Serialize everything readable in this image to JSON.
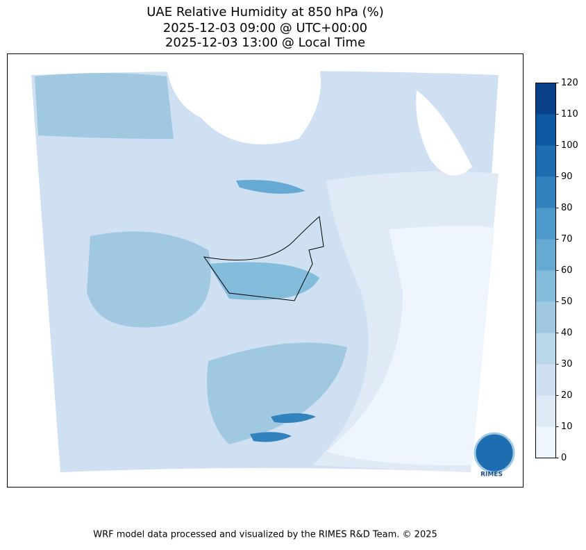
{
  "title": [
    "UAE Relative Humidity at 850 hPa (%)",
    "2025-12-03 09:00 @ UTC+00:00",
    "2025-12-03 13:00 @ Local Time"
  ],
  "colorbar": {
    "levels": [
      0,
      10,
      20,
      30,
      40,
      50,
      60,
      70,
      80,
      90,
      100,
      110,
      120
    ],
    "colors": [
      "#eff5fc",
      "#dfeaf6",
      "#cee0f2",
      "#b9d6ea",
      "#a0c9e1",
      "#84bcdb",
      "#66aad4",
      "#4d99ca",
      "#3282bd",
      "#1f6db1",
      "#0e58a2",
      "#08418a"
    ]
  },
  "logo": "RIMES",
  "footer": "WRF model data processed and visualized by the RIMES R&D Team. © 2025"
}
